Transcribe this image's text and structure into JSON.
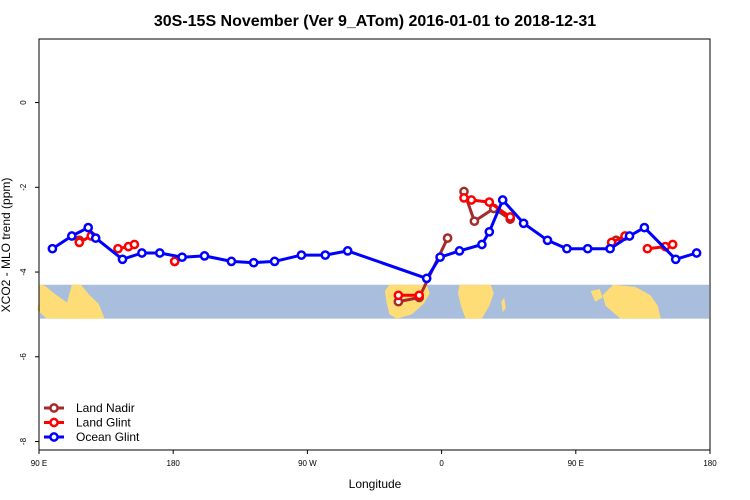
{
  "chart_data": {
    "type": "line",
    "title": "30S-15S November (Ver 9_ATom)   2016-01-01 to 2018-12-31",
    "xlabel": "Longitude",
    "ylabel": "XCO2 - MLO trend (ppm)",
    "xlim": [
      90,
      540
    ],
    "ylim": [
      -8.2,
      1.5
    ],
    "x_ticks": [
      {
        "value": 90,
        "label": "90 E"
      },
      {
        "value": 180,
        "label": "180"
      },
      {
        "value": 270,
        "label": "90 W"
      },
      {
        "value": 360,
        "label": "0"
      },
      {
        "value": 450,
        "label": "90 E"
      },
      {
        "value": 540,
        "label": "180"
      }
    ],
    "y_ticks": [
      {
        "value": 0,
        "label": "0"
      },
      {
        "value": -2,
        "label": "-2"
      },
      {
        "value": -4,
        "label": "-4"
      },
      {
        "value": -6,
        "label": "-6"
      },
      {
        "value": -8,
        "label": "-8"
      }
    ],
    "grid": false,
    "legend_position": "bottom-left",
    "background_map_band": {
      "y_range": [
        -4.3,
        -5.1
      ],
      "ocean_color": "#A8BEDC",
      "land_color": "#FEDD77"
    },
    "series": [
      {
        "name": "Land Nadir",
        "color": "#A52A2A",
        "segments": [
          {
            "x": [
              117,
              117
            ],
            "y": [
              -3.25,
              -3.25
            ]
          },
          {
            "x": [
              331,
              345,
              364
            ],
            "y": [
              -4.7,
              -4.6,
              -3.2
            ]
          },
          {
            "x": [
              375,
              382,
              395,
              406
            ],
            "y": [
              -2.1,
              -2.8,
              -2.5,
              -2.75
            ]
          },
          {
            "x": [
              477,
              477
            ],
            "y": [
              -3.25,
              -3.25
            ]
          }
        ]
      },
      {
        "name": "Land Glint",
        "color": "#FF0000",
        "segments": [
          {
            "x": [
              117,
              125
            ],
            "y": [
              -3.3,
              -3.15
            ]
          },
          {
            "x": [
              143,
              150,
              154
            ],
            "y": [
              -3.45,
              -3.4,
              -3.35
            ]
          },
          {
            "x": [
              181,
              181
            ],
            "y": [
              -3.75,
              -3.75
            ]
          },
          {
            "x": [
              331,
              345
            ],
            "y": [
              -4.55,
              -4.55
            ]
          },
          {
            "x": [
              375,
              380,
              392,
              406
            ],
            "y": [
              -2.25,
              -2.3,
              -2.35,
              -2.7
            ]
          },
          {
            "x": [
              474,
              483
            ],
            "y": [
              -3.3,
              -3.15
            ]
          },
          {
            "x": [
              498,
              510,
              515
            ],
            "y": [
              -3.45,
              -3.4,
              -3.35
            ]
          }
        ]
      },
      {
        "name": "Ocean Glint",
        "color": "#0000FF",
        "segments": [
          {
            "x": [
              99,
              112,
              123,
              128,
              146,
              159,
              171,
              186,
              201,
              219,
              234,
              248,
              266,
              282,
              297,
              350,
              359,
              372,
              387,
              392,
              401,
              415,
              431,
              444,
              458,
              473,
              486,
              496,
              517,
              531
            ],
            "y": [
              -3.45,
              -3.15,
              -2.95,
              -3.2,
              -3.7,
              -3.55,
              -3.55,
              -3.65,
              -3.62,
              -3.75,
              -3.78,
              -3.75,
              -3.6,
              -3.6,
              -3.5,
              -4.15,
              -3.65,
              -3.5,
              -3.35,
              -3.05,
              -2.3,
              -2.85,
              -3.25,
              -3.45,
              -3.45,
              -3.45,
              -3.15,
              -2.95,
              -3.7,
              -3.55
            ]
          }
        ]
      }
    ]
  }
}
